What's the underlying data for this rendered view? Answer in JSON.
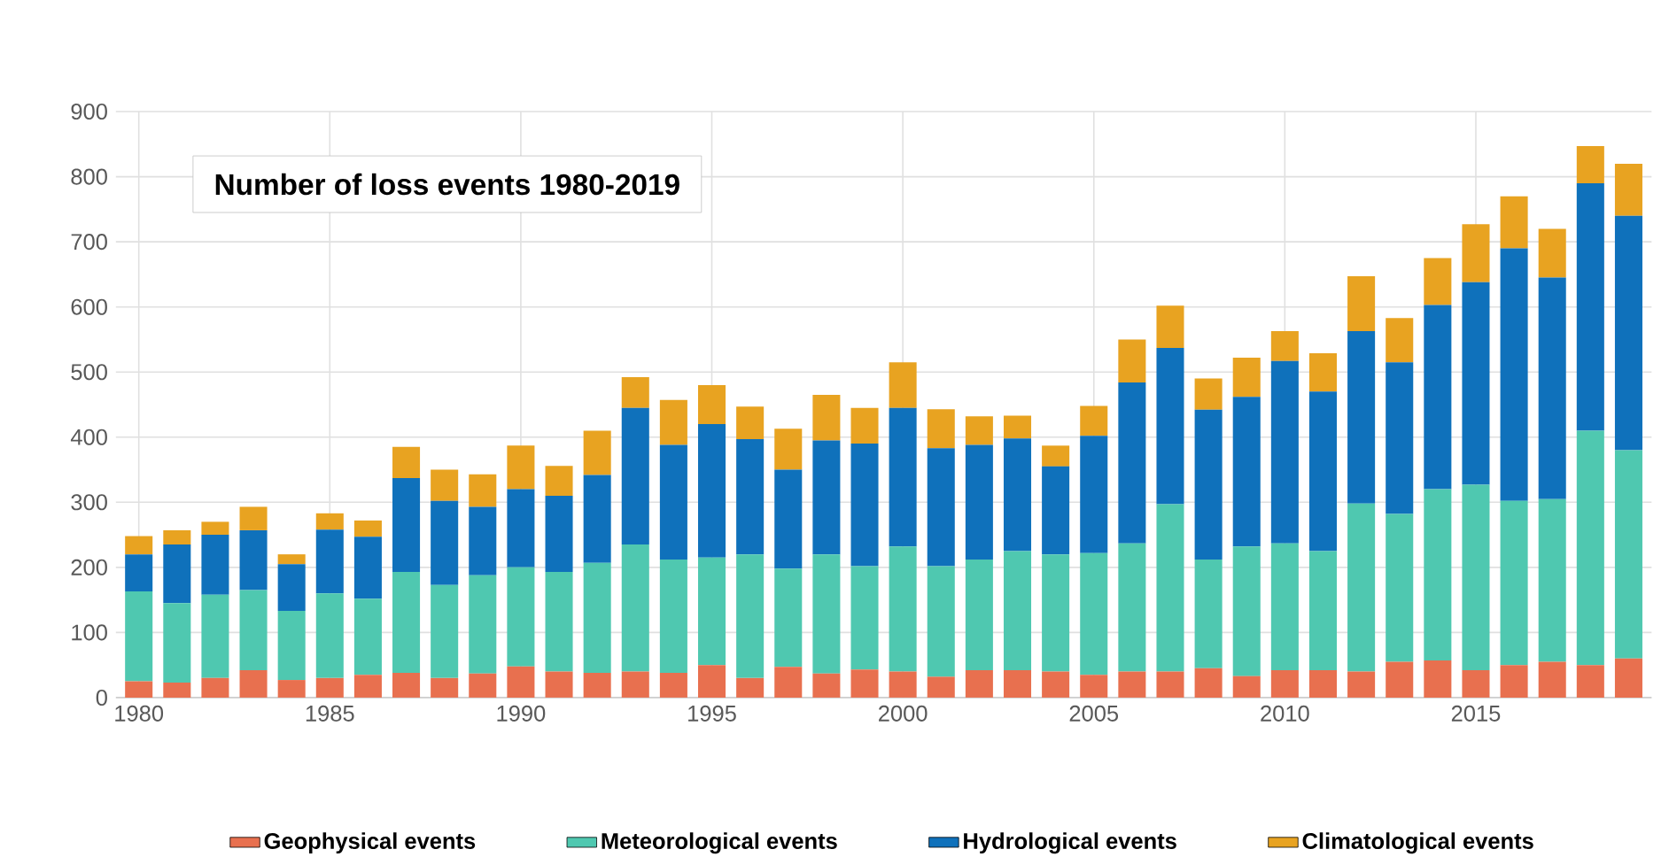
{
  "chart_data": {
    "type": "bar",
    "stacked": true,
    "title": "Number of loss events 1980-2019",
    "x": [
      1980,
      1981,
      1982,
      1983,
      1984,
      1985,
      1986,
      1987,
      1988,
      1989,
      1990,
      1991,
      1992,
      1993,
      1994,
      1995,
      1996,
      1997,
      1998,
      1999,
      2000,
      2001,
      2002,
      2003,
      2004,
      2005,
      2006,
      2007,
      2008,
      2009,
      2010,
      2011,
      2012,
      2013,
      2014,
      2015,
      2016,
      2017,
      2018,
      2019
    ],
    "xlim": [
      1979.4,
      2019.6
    ],
    "xticks": [
      1980,
      1985,
      1990,
      1995,
      2000,
      2005,
      2010,
      2015
    ],
    "ylim": [
      0,
      900
    ],
    "yticks": [
      0,
      100,
      200,
      300,
      400,
      500,
      600,
      700,
      800,
      900
    ],
    "grid": true,
    "legend": "bottom",
    "series": [
      {
        "name": "Geophysical events",
        "color": "#e8704f",
        "values": [
          25,
          23,
          30,
          42,
          27,
          30,
          35,
          38,
          30,
          37,
          48,
          40,
          38,
          40,
          38,
          50,
          30,
          47,
          37,
          43,
          40,
          32,
          42,
          42,
          40,
          35,
          40,
          40,
          45,
          33,
          42,
          42,
          40,
          55,
          57,
          42,
          50,
          55,
          50,
          60
        ]
      },
      {
        "name": "Meteorological events",
        "color": "#4fc8b0",
        "values": [
          138,
          122,
          128,
          123,
          106,
          130,
          117,
          155,
          143,
          151,
          152,
          153,
          169,
          195,
          174,
          165,
          190,
          151,
          183,
          159,
          192,
          170,
          170,
          183,
          180,
          187,
          197,
          257,
          167,
          199,
          195,
          183,
          258,
          227,
          263,
          285,
          252,
          250,
          360,
          320
        ]
      },
      {
        "name": "Hydrological events",
        "color": "#0f71bb",
        "values": [
          57,
          90,
          92,
          92,
          72,
          98,
          95,
          144,
          129,
          105,
          120,
          117,
          135,
          210,
          176,
          205,
          177,
          152,
          175,
          188,
          213,
          181,
          176,
          173,
          135,
          180,
          247,
          240,
          230,
          230,
          280,
          245,
          265,
          233,
          283,
          311,
          388,
          340,
          380,
          360
        ]
      },
      {
        "name": "Climatological events",
        "color": "#e8a321",
        "values": [
          28,
          22,
          20,
          36,
          15,
          25,
          25,
          48,
          48,
          50,
          67,
          46,
          68,
          47,
          69,
          60,
          50,
          63,
          70,
          55,
          70,
          60,
          44,
          35,
          32,
          46,
          66,
          65,
          48,
          60,
          46,
          59,
          84,
          68,
          72,
          89,
          80,
          75,
          57,
          80
        ]
      }
    ]
  }
}
